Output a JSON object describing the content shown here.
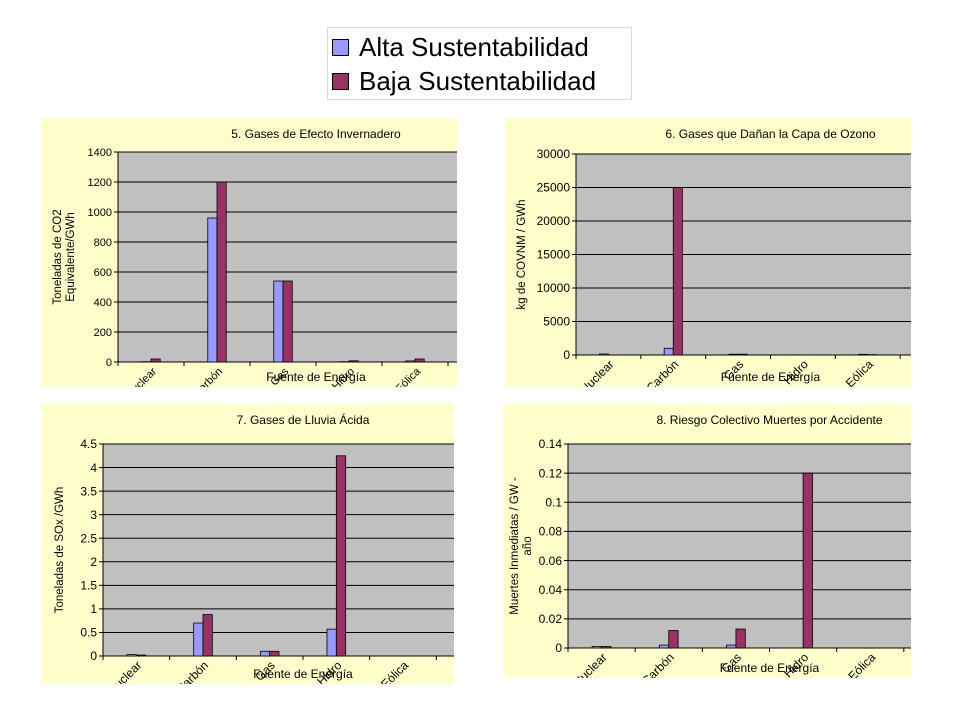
{
  "colors": {
    "alta": "#9999ff",
    "baja": "#993366",
    "panel_bg": "#ffffcc",
    "plot_bg": "#c0c0c0"
  },
  "legend": {
    "items": [
      {
        "label": "Alta Sustentabilidad",
        "color": "#9999ff"
      },
      {
        "label": "Baja Sustentabilidad",
        "color": "#993366"
      }
    ]
  },
  "chart_data": [
    {
      "type": "bar",
      "title": "5. Gases de Efecto Invernadero",
      "xlabel": "Fuente de Energía",
      "ylabel": [
        "Toneladas de CO2",
        "Equivalente/GWh"
      ],
      "categories": [
        "Nuclear",
        "Carbón",
        "Gas",
        "Hidro",
        "Eólica",
        ""
      ],
      "ylim": [
        0,
        1400
      ],
      "yticks": [
        0,
        200,
        400,
        600,
        800,
        1000,
        1200,
        1400
      ],
      "ytick_labels": [
        "0",
        "200",
        "400",
        "600",
        "800",
        "1000",
        "1200",
        "1400"
      ],
      "series": [
        {
          "name": "Alta Sustentabilidad",
          "values": [
            2,
            960,
            540,
            2,
            7,
            null
          ]
        },
        {
          "name": "Baja Sustentabilidad",
          "values": [
            20,
            1200,
            540,
            8,
            20,
            null
          ]
        }
      ]
    },
    {
      "type": "bar",
      "title": "6. Gases que Dañan la Capa de Ozono",
      "xlabel": "Fuente de Energía",
      "ylabel": [
        "kg de COVNM / GWh"
      ],
      "categories": [
        "Nuclear",
        "Carbón",
        "Gas",
        "Hidro",
        "Eólica",
        ""
      ],
      "ylim": [
        0,
        30000
      ],
      "yticks": [
        0,
        5000,
        10000,
        15000,
        20000,
        25000,
        30000
      ],
      "ytick_labels": [
        "0",
        "5000",
        "10000",
        "15000",
        "20000",
        "25000",
        "30000"
      ],
      "series": [
        {
          "name": "Alta Sustentabilidad",
          "values": [
            150,
            1000,
            120,
            20,
            100,
            null
          ]
        },
        {
          "name": "Baja Sustentabilidad",
          "values": [
            10,
            25000,
            120,
            10,
            50,
            null
          ]
        }
      ]
    },
    {
      "type": "bar",
      "title": "7. Gases de Lluvia Ácida",
      "xlabel": "Fuente de Energía",
      "ylabel": [
        "Toneladas de SOx /GWh"
      ],
      "categories": [
        "Nuclear",
        "Carbón",
        "Gas",
        "Hidro",
        "Eólica",
        ""
      ],
      "ylim": [
        0,
        4.5
      ],
      "yticks": [
        0,
        0.5,
        1,
        1.5,
        2,
        2.5,
        3,
        3.5,
        4,
        4.5
      ],
      "ytick_labels": [
        "0",
        "0.5",
        "1",
        "1.5",
        "2",
        "2.5",
        "3",
        "3.5",
        "4",
        "4.5"
      ],
      "series": [
        {
          "name": "Alta Sustentabilidad",
          "values": [
            0.03,
            0.7,
            0.1,
            0.57,
            0,
            null
          ]
        },
        {
          "name": "Baja Sustentabilidad",
          "values": [
            0.02,
            0.88,
            0.1,
            4.25,
            0,
            null
          ]
        }
      ]
    },
    {
      "type": "bar",
      "title": "8. Riesgo Colectivo Muertes por Accidente",
      "xlabel": "Fuente de Energía",
      "ylabel": [
        "Muertes Inmediatas / GW -",
        "año"
      ],
      "categories": [
        "Nuclear",
        "Carbón",
        "Gas",
        "Hidro",
        "Eólica",
        ""
      ],
      "ylim": [
        0,
        0.14
      ],
      "yticks": [
        0,
        0.02,
        0.04,
        0.06,
        0.08,
        0.1,
        0.12,
        0.14
      ],
      "ytick_labels": [
        "0",
        "0.02",
        "0.04",
        "0.06",
        "0.08",
        "0.1",
        "0.12",
        "0.14"
      ],
      "series": [
        {
          "name": "Alta Sustentabilidad",
          "values": [
            0.001,
            0.002,
            0.002,
            0,
            0,
            null
          ]
        },
        {
          "name": "Baja Sustentabilidad",
          "values": [
            0.001,
            0.012,
            0.013,
            0.12,
            0,
            null
          ]
        }
      ]
    }
  ]
}
